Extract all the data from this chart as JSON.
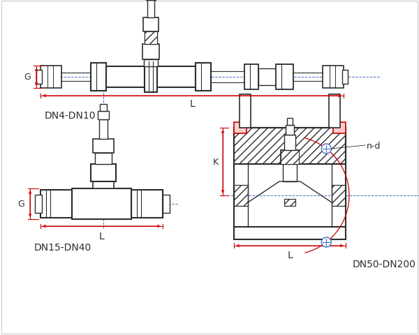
{
  "bg_color": "#ffffff",
  "line_color": "#2d2d2d",
  "red_color": "#cc0000",
  "blue_color": "#4472c4",
  "label_DN4": "DN4-DN10",
  "label_DN15": "DN15-DN40",
  "label_DN50": "DN50-DN200",
  "label_G": "G",
  "label_L": "L",
  "label_K": "K",
  "label_nd": "n-d",
  "dim_fontsize": 9
}
